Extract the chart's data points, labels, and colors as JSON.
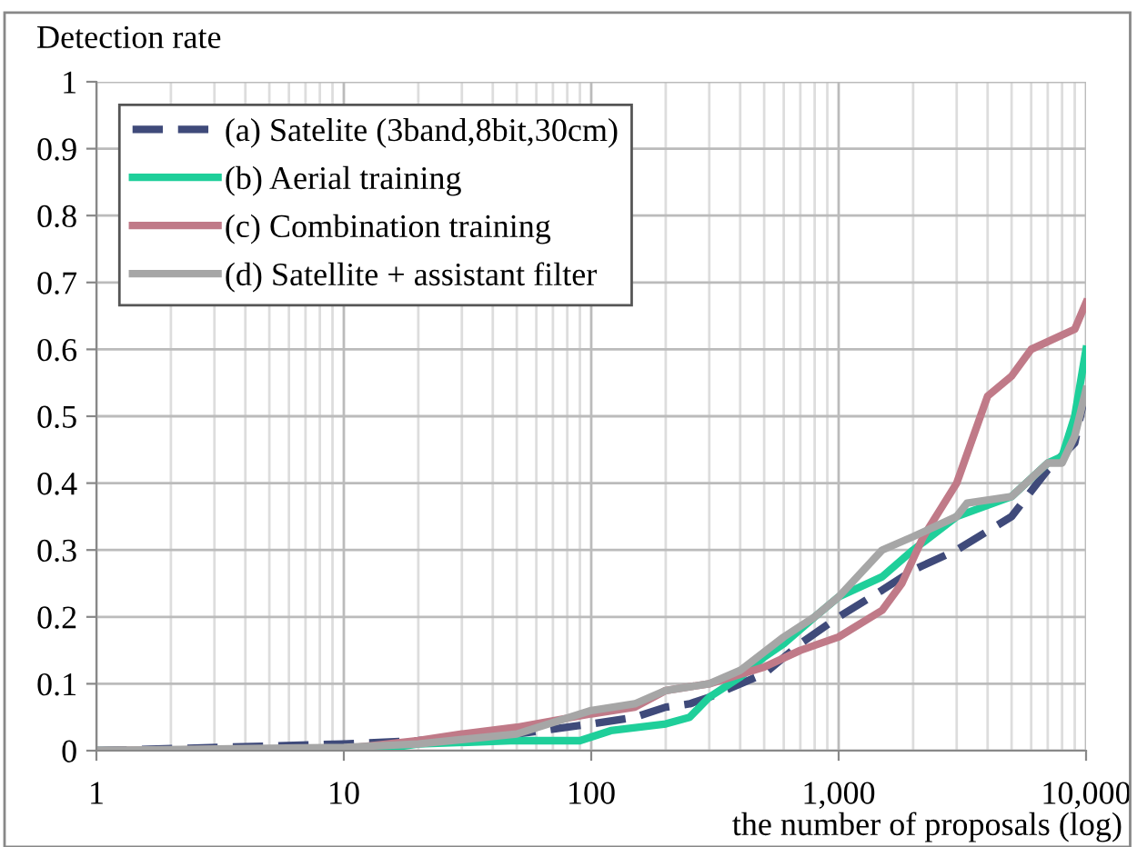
{
  "chart_data": {
    "type": "line",
    "ylabel": "Detection rate",
    "xlabel": "the number of proposals (log)",
    "log": "x",
    "xlim": [
      1,
      10000
    ],
    "xticks": [
      1,
      10,
      100,
      {
        "value": 1000,
        "label": "1,000"
      },
      {
        "value": 10000,
        "label": "10,000"
      }
    ],
    "ylim": [
      0,
      1
    ],
    "yticks": [
      0,
      0.1,
      0.2,
      0.3,
      0.4,
      0.5,
      0.6,
      0.7,
      0.8,
      0.9,
      1
    ],
    "grid": true,
    "legend": "top left",
    "marker": "none",
    "series": [
      {
        "name": "(a) Satelite (3band,8bit,30cm)",
        "color": "#3f4a7a",
        "line_style": "dashed",
        "x": [
          1,
          10,
          20,
          50,
          100,
          150,
          200,
          250,
          300,
          500,
          700,
          1000,
          1500,
          2000,
          3000,
          5000,
          7000,
          9000,
          10000
        ],
        "values": [
          0,
          0.01,
          0.015,
          0.025,
          0.04,
          0.05,
          0.065,
          0.07,
          0.08,
          0.115,
          0.16,
          0.2,
          0.24,
          0.27,
          0.3,
          0.35,
          0.42,
          0.46,
          0.54
        ]
      },
      {
        "name": "(b) Aerial training",
        "color": "#1fcf9a",
        "line_style": "solid",
        "x": [
          1,
          10,
          16,
          20,
          50,
          90,
          120,
          200,
          250,
          300,
          400,
          500,
          600,
          800,
          1000,
          1500,
          2000,
          3000,
          5000,
          7000,
          8000,
          9000,
          10000
        ],
        "values": [
          0,
          0,
          0.005,
          0.01,
          0.015,
          0.015,
          0.03,
          0.04,
          0.05,
          0.08,
          0.11,
          0.14,
          0.16,
          0.2,
          0.23,
          0.26,
          0.3,
          0.35,
          0.38,
          0.43,
          0.44,
          0.5,
          0.6
        ]
      },
      {
        "name": "(c) Combination training",
        "color": "#c07a88",
        "line_style": "solid",
        "x": [
          1,
          10,
          20,
          30,
          50,
          100,
          150,
          200,
          300,
          500,
          700,
          1000,
          1500,
          1800,
          2200,
          3000,
          4000,
          5000,
          6000,
          9000,
          10000
        ],
        "values": [
          0,
          0.003,
          0.015,
          0.025,
          0.035,
          0.055,
          0.065,
          0.09,
          0.1,
          0.125,
          0.15,
          0.17,
          0.21,
          0.25,
          0.32,
          0.4,
          0.53,
          0.56,
          0.6,
          0.63,
          0.67
        ]
      },
      {
        "name": "(d) Satellite + assistant filter",
        "color": "#a6a6a6",
        "line_style": "solid",
        "x": [
          1,
          10,
          20,
          50,
          100,
          150,
          200,
          300,
          400,
          600,
          800,
          1000,
          1500,
          2000,
          3000,
          3300,
          5000,
          7000,
          8000,
          9000,
          10000
        ],
        "values": [
          0,
          0.005,
          0.01,
          0.025,
          0.06,
          0.07,
          0.09,
          0.1,
          0.12,
          0.17,
          0.2,
          0.23,
          0.3,
          0.32,
          0.35,
          0.37,
          0.38,
          0.43,
          0.43,
          0.47,
          0.54
        ]
      }
    ]
  }
}
